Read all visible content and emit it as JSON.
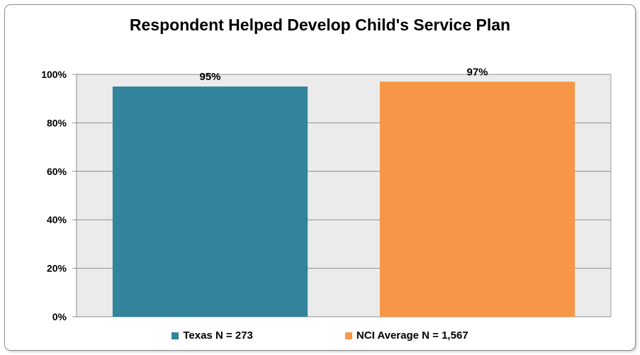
{
  "chart_data": {
    "type": "bar",
    "title": "Respondent Helped Develop Child's Service Plan",
    "categories": [
      "Texas N = 273",
      "NCI Average N = 1,567"
    ],
    "values": [
      95,
      97
    ],
    "value_labels": [
      "95%",
      "97%"
    ],
    "colors": [
      "#31849b",
      "#f79646"
    ],
    "ylim": [
      0,
      100
    ],
    "yticks": [
      0,
      20,
      40,
      60,
      80,
      100
    ],
    "ytick_labels": [
      "0%",
      "20%",
      "40%",
      "60%",
      "80%",
      "100%"
    ],
    "xlabel": "",
    "ylabel": "",
    "grid": true,
    "legend": "bottom",
    "plot_background": "#ebebeb"
  }
}
